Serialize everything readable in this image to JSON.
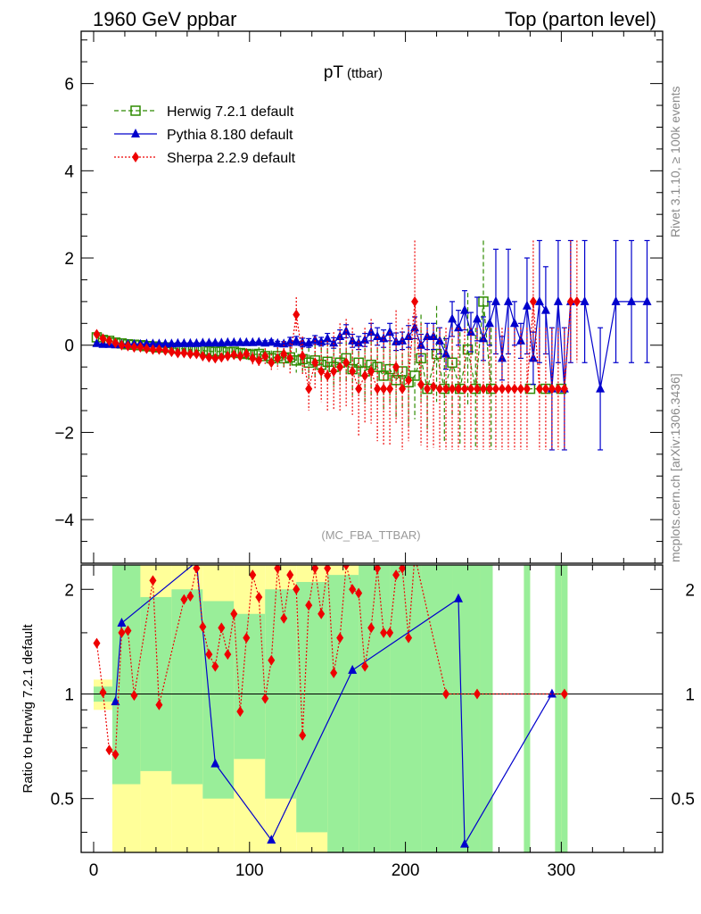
{
  "header": {
    "left": "1960 GeV ppbar",
    "right": "Top (parton level)"
  },
  "side_labels": {
    "rivet": "Rivet 3.1.10, ≥ 100k events",
    "mcplots": "mcplots.cern.ch [arXiv:1306.3436]"
  },
  "chart_data": {
    "type": "line",
    "title_main": "pT",
    "title_sub": "(ttbar)",
    "watermark": "(MC_FBA_TTBAR)",
    "xlim": [
      -8,
      365
    ],
    "xticks": [
      0,
      100,
      200,
      300
    ],
    "main": {
      "ylim": [
        -5,
        7.2
      ],
      "yticks": [
        -4,
        -2,
        0,
        2,
        4,
        6
      ],
      "ytick_labels": [
        "−4",
        "−2",
        "0",
        "2",
        "4",
        "6"
      ]
    },
    "ratio": {
      "ylabel": "Ratio to Herwig 7.2.1 default",
      "ylim": [
        0.35,
        2.35
      ],
      "yticks": [
        0.5,
        1,
        2
      ],
      "ytick_labels": [
        "0.5",
        "1",
        "2"
      ]
    },
    "colors": {
      "herwig": "#2e8b00",
      "pythia": "#0000cc",
      "sherpa": "#ee0000",
      "band_yellow": "#ffff99",
      "band_green": "#99ee99"
    },
    "legend": [
      {
        "name": "Herwig 7.2.1 default",
        "key": "herwig"
      },
      {
        "name": "Pythia 8.180 default",
        "key": "pythia"
      },
      {
        "name": "Sherpa 2.2.9 default",
        "key": "sherpa"
      }
    ],
    "series": [
      {
        "name": "Herwig 7.2.1 default",
        "key": "herwig",
        "x": [
          2,
          6,
          10,
          14,
          18,
          22,
          26,
          30,
          34,
          38,
          42,
          46,
          50,
          54,
          58,
          62,
          66,
          70,
          74,
          78,
          82,
          86,
          90,
          94,
          98,
          102,
          106,
          110,
          114,
          118,
          122,
          126,
          130,
          134,
          138,
          142,
          146,
          150,
          154,
          158,
          162,
          166,
          170,
          174,
          178,
          182,
          186,
          190,
          194,
          198,
          202,
          206,
          210,
          214,
          220,
          225,
          230,
          235,
          240,
          245,
          250,
          255,
          280,
          290,
          300
        ],
        "y": [
          0.18,
          0.12,
          0.1,
          0.06,
          0.04,
          0.02,
          0.01,
          0,
          -0.02,
          -0.03,
          -0.05,
          -0.05,
          -0.06,
          -0.08,
          -0.08,
          -0.1,
          -0.12,
          -0.12,
          -0.14,
          -0.15,
          -0.14,
          -0.16,
          -0.15,
          -0.18,
          -0.2,
          -0.22,
          -0.2,
          -0.25,
          -0.3,
          -0.25,
          -0.3,
          -0.28,
          -0.35,
          -0.32,
          -0.4,
          -0.35,
          -0.45,
          -0.38,
          -0.5,
          -0.4,
          -0.3,
          -0.55,
          -0.4,
          -0.6,
          -0.45,
          -0.5,
          -0.7,
          -0.55,
          -0.8,
          -0.6,
          -0.85,
          -0.7,
          -0.3,
          -1,
          -0.2,
          -1,
          -0.4,
          -1,
          -0.1,
          -1,
          1,
          -1,
          -1,
          -1,
          -1
        ],
        "err": [
          0.03,
          0.03,
          0.03,
          0.03,
          0.03,
          0.04,
          0.04,
          0.04,
          0.05,
          0.05,
          0.05,
          0.06,
          0.06,
          0.06,
          0.07,
          0.07,
          0.08,
          0.08,
          0.09,
          0.09,
          0.1,
          0.1,
          0.11,
          0.12,
          0.13,
          0.14,
          0.15,
          0.16,
          0.18,
          0.2,
          0.22,
          0.25,
          0.28,
          0.3,
          0.35,
          0.38,
          0.4,
          0.45,
          0.5,
          0.5,
          0.55,
          0.6,
          0.6,
          0.7,
          0.7,
          0.75,
          0.8,
          0.8,
          0.9,
          0.9,
          1,
          1,
          1,
          1,
          1.1,
          1.2,
          1.2,
          1.3,
          1.3,
          1.4,
          1.4,
          1.4,
          0,
          0,
          0
        ]
      },
      {
        "name": "Pythia 8.180 default",
        "key": "pythia",
        "x": [
          2,
          6,
          10,
          14,
          18,
          22,
          26,
          30,
          34,
          38,
          42,
          46,
          50,
          54,
          58,
          62,
          66,
          70,
          74,
          78,
          82,
          86,
          90,
          94,
          98,
          102,
          106,
          110,
          114,
          118,
          122,
          126,
          130,
          134,
          138,
          142,
          146,
          150,
          154,
          158,
          162,
          166,
          170,
          174,
          178,
          182,
          186,
          190,
          194,
          198,
          202,
          206,
          210,
          214,
          218,
          222,
          226,
          230,
          234,
          238,
          242,
          246,
          250,
          254,
          258,
          262,
          266,
          270,
          274,
          278,
          282,
          286,
          290,
          294,
          298,
          302,
          306,
          315,
          325,
          335,
          345,
          355
        ],
        "y": [
          0.04,
          0.02,
          0.02,
          0.01,
          0.02,
          0.02,
          0.02,
          0.02,
          0.03,
          0.03,
          0.03,
          0.03,
          0.03,
          0.04,
          0.04,
          0.04,
          0.04,
          0.05,
          0.05,
          0.05,
          0.05,
          0.06,
          0.06,
          0.06,
          0.06,
          0.06,
          0.07,
          0.05,
          0.07,
          0.04,
          0.03,
          0.08,
          0.1,
          0.06,
          0.05,
          0.12,
          0.08,
          0.15,
          0.05,
          0.2,
          0.32,
          0.1,
          0.05,
          0.12,
          0.3,
          0.2,
          0.15,
          0.3,
          0.08,
          0.1,
          0.2,
          0.4,
          0,
          0.2,
          0.2,
          0.1,
          -0.2,
          0.6,
          0.4,
          0.8,
          0.3,
          0.6,
          0.15,
          0.5,
          1,
          -0.3,
          1,
          0.5,
          0.1,
          0.9,
          -0.3,
          1,
          0.8,
          -1,
          1,
          -1,
          1,
          1,
          -1,
          1,
          1,
          1
        ],
        "err": [
          0.02,
          0.02,
          0.02,
          0.02,
          0.02,
          0.02,
          0.02,
          0.02,
          0.02,
          0.02,
          0.02,
          0.02,
          0.02,
          0.02,
          0.02,
          0.02,
          0.02,
          0.02,
          0.02,
          0.02,
          0.02,
          0.02,
          0.02,
          0.02,
          0.02,
          0.02,
          0.02,
          0.05,
          0.05,
          0.05,
          0.05,
          0.1,
          0.1,
          0.1,
          0.1,
          0.1,
          0.1,
          0.12,
          0.12,
          0.15,
          0.15,
          0.15,
          0.15,
          0.15,
          0.2,
          0.2,
          0.2,
          0.2,
          0.2,
          0.2,
          0.25,
          0.25,
          0.25,
          0.3,
          0.3,
          0.3,
          0.35,
          0.4,
          0.4,
          0.45,
          0.45,
          0.5,
          0.5,
          0.5,
          1.2,
          0.5,
          1.2,
          0.5,
          0.4,
          1.1,
          0.6,
          1.4,
          1,
          1.4,
          1.4,
          1.4,
          1.4,
          1.4,
          1.4,
          1.4,
          1.4,
          1.4
        ]
      },
      {
        "name": "Sherpa 2.2.9 default",
        "key": "sherpa",
        "x": [
          2,
          6,
          10,
          14,
          18,
          22,
          26,
          30,
          34,
          38,
          42,
          46,
          50,
          54,
          58,
          62,
          66,
          70,
          74,
          78,
          82,
          86,
          90,
          94,
          98,
          102,
          106,
          110,
          114,
          118,
          122,
          126,
          130,
          134,
          138,
          142,
          146,
          150,
          154,
          158,
          162,
          166,
          170,
          174,
          178,
          182,
          186,
          190,
          194,
          198,
          202,
          206,
          210,
          214,
          218,
          222,
          226,
          230,
          234,
          238,
          242,
          246,
          250,
          254,
          258,
          262,
          266,
          270,
          274,
          278,
          282,
          286,
          290,
          294,
          298,
          302,
          306,
          310
        ],
        "y": [
          0.25,
          0.15,
          0.1,
          0.05,
          0,
          -0.02,
          -0.05,
          -0.05,
          -0.08,
          -0.1,
          -0.1,
          -0.12,
          -0.15,
          -0.18,
          -0.18,
          -0.2,
          -0.2,
          -0.25,
          -0.28,
          -0.3,
          -0.28,
          -0.25,
          -0.22,
          -0.25,
          -0.2,
          -0.3,
          -0.35,
          -0.25,
          -0.4,
          -0.3,
          -0.2,
          -0.3,
          0.7,
          -0.25,
          -1,
          -0.4,
          -0.6,
          -0.7,
          -0.6,
          -0.5,
          -0.4,
          -0.6,
          -1,
          -0.7,
          -0.6,
          -1,
          -1,
          -1,
          -0.5,
          -1,
          -0.8,
          1,
          -0.9,
          -1,
          -0.95,
          -1,
          -1,
          -1,
          -1,
          -1,
          -1,
          -1,
          -1,
          -1,
          -1,
          -1,
          -1,
          -1,
          -1,
          -1,
          1,
          -1,
          -1,
          -1,
          -1,
          -1,
          1,
          1
        ],
        "err": [
          0.05,
          0.05,
          0.05,
          0.05,
          0.05,
          0.05,
          0.05,
          0.05,
          0.05,
          0.05,
          0.06,
          0.06,
          0.06,
          0.06,
          0.07,
          0.07,
          0.07,
          0.08,
          0.08,
          0.08,
          0.09,
          0.1,
          0.1,
          0.12,
          0.12,
          0.14,
          0.16,
          0.18,
          0.2,
          0.25,
          0.3,
          0.35,
          0.4,
          0.45,
          0.5,
          0.6,
          0.7,
          0.8,
          0.9,
          1,
          1,
          1,
          1.1,
          1.1,
          1.2,
          1.2,
          1.3,
          1.3,
          1.3,
          1.4,
          1.4,
          1.4,
          1.4,
          1.4,
          1.4,
          1.4,
          1.4,
          1.4,
          1.4,
          1.4,
          1.4,
          1.4,
          1.4,
          1.4,
          1.4,
          1.4,
          1.4,
          1.4,
          1.4,
          1.4,
          1.4,
          1.4,
          1.4,
          1.4,
          1.4,
          1.4,
          1.4,
          1.4
        ]
      }
    ],
    "ratio_series": [
      {
        "name": "Pythia 8.180 default",
        "key": "pythia",
        "x": [
          14,
          18,
          66,
          78,
          114,
          166,
          234,
          238,
          294
        ],
        "y": [
          0.95,
          1.6,
          2.4,
          0.63,
          0.38,
          1.17,
          1.88,
          0.37,
          1.0
        ]
      },
      {
        "name": "Sherpa 2.2.9 default",
        "key": "sherpa",
        "x": [
          2,
          6,
          10,
          14,
          18,
          22,
          26,
          38,
          42,
          58,
          62,
          66,
          70,
          74,
          78,
          82,
          86,
          90,
          94,
          98,
          102,
          106,
          110,
          114,
          118,
          122,
          126,
          130,
          134,
          138,
          142,
          146,
          150,
          154,
          158,
          162,
          166,
          170,
          174,
          178,
          182,
          186,
          190,
          194,
          198,
          202,
          206,
          226,
          246,
          302
        ],
        "y": [
          1.4,
          1.01,
          0.69,
          0.67,
          1.5,
          1.52,
          0.99,
          2.12,
          0.93,
          1.87,
          1.91,
          2.3,
          1.56,
          1.3,
          1.2,
          1.55,
          1.3,
          1.7,
          0.89,
          1.45,
          2.2,
          1.9,
          0.97,
          1.25,
          2.3,
          1.65,
          2.2,
          2.0,
          0.76,
          1.8,
          2.3,
          1.7,
          2.3,
          1.15,
          1.45,
          2.35,
          2.0,
          1.95,
          1.2,
          1.55,
          2.3,
          1.5,
          1.5,
          2.2,
          2.3,
          1.45,
          2.5,
          1.0,
          1.0,
          1.0
        ]
      }
    ],
    "ratio_bands": [
      {
        "x0": 0,
        "x1": 12,
        "ylo": 0.9,
        "yhi": 1.1,
        "glo": 0.95,
        "ghi": 1.05
      },
      {
        "x0": 12,
        "x1": 30,
        "ylo": 0.35,
        "yhi": 2.35,
        "glo": 0.55,
        "ghi": 2.35
      },
      {
        "x0": 30,
        "x1": 50,
        "ylo": 0.35,
        "yhi": 2.35,
        "glo": 0.6,
        "ghi": 1.9
      },
      {
        "x0": 50,
        "x1": 70,
        "ylo": 0.35,
        "yhi": 2.35,
        "glo": 0.55,
        "ghi": 2.0
      },
      {
        "x0": 70,
        "x1": 90,
        "ylo": 0.35,
        "yhi": 2.35,
        "glo": 0.5,
        "ghi": 1.85
      },
      {
        "x0": 90,
        "x1": 110,
        "ylo": 0.35,
        "yhi": 2.35,
        "glo": 0.65,
        "ghi": 1.7
      },
      {
        "x0": 110,
        "x1": 130,
        "ylo": 0.35,
        "yhi": 2.35,
        "glo": 0.5,
        "ghi": 2.0
      },
      {
        "x0": 130,
        "x1": 150,
        "ylo": 0.35,
        "yhi": 2.35,
        "glo": 0.4,
        "ghi": 2.1
      },
      {
        "x0": 150,
        "x1": 170,
        "ylo": 0.35,
        "yhi": 2.35,
        "glo": 0.35,
        "ghi": 2.2
      },
      {
        "x0": 170,
        "x1": 190,
        "ylo": 0.35,
        "yhi": 2.35,
        "glo": 0.35,
        "ghi": 2.35
      },
      {
        "x0": 190,
        "x1": 210,
        "ylo": 0.35,
        "yhi": 2.35,
        "glo": 0.35,
        "ghi": 2.35
      },
      {
        "x0": 210,
        "x1": 230,
        "ylo": 0.35,
        "yhi": 2.35,
        "glo": 0.35,
        "ghi": 2.35
      },
      {
        "x0": 230,
        "x1": 248,
        "ylo": 0.35,
        "yhi": 2.35,
        "glo": 0.35,
        "ghi": 2.35
      },
      {
        "x0": 248,
        "x1": 256,
        "ylo": 0.35,
        "yhi": 2.35,
        "glo": 0.35,
        "ghi": 2.35
      },
      {
        "x0": 276,
        "x1": 280,
        "ylo": 0.35,
        "yhi": 2.35,
        "glo": 0.35,
        "ghi": 2.35
      },
      {
        "x0": 296,
        "x1": 300,
        "ylo": 0.35,
        "yhi": 2.35,
        "glo": 0.35,
        "ghi": 2.35
      },
      {
        "x0": 300,
        "x1": 304,
        "ylo": 0.35,
        "yhi": 2.35,
        "glo": 0.35,
        "ghi": 2.35
      }
    ]
  }
}
